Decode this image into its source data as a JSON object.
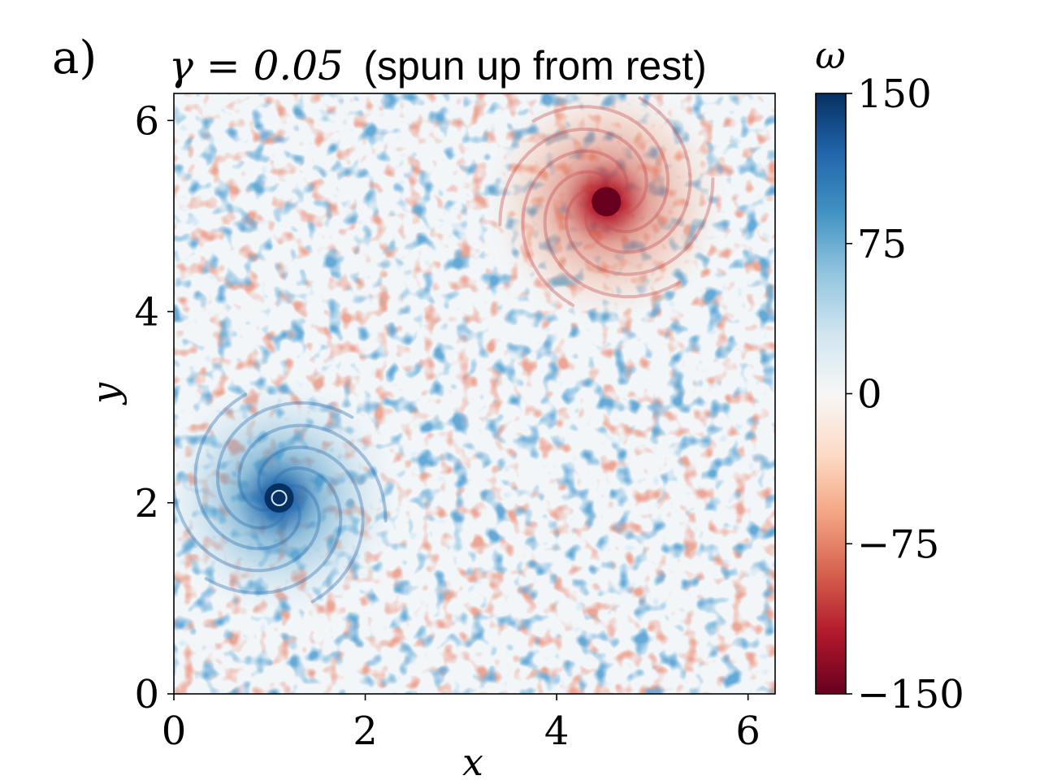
{
  "chart_data": {
    "type": "heatmap",
    "panel_label": "a)",
    "title_math": "γ = 0.05",
    "title_text": "(spun up from rest)",
    "xlabel": "x",
    "ylabel": "y",
    "xlim": [
      0,
      6.283
    ],
    "ylim": [
      0,
      6.283
    ],
    "x_ticks": [
      0,
      2,
      4,
      6
    ],
    "y_ticks": [
      0,
      2,
      4,
      6
    ],
    "x_tick_labels": [
      "0",
      "2",
      "4",
      "6"
    ],
    "y_tick_labels": [
      "0",
      "2",
      "4",
      "6"
    ],
    "colorbar": {
      "label": "ω",
      "range": [
        -150,
        150
      ],
      "ticks": [
        150,
        75,
        0,
        -75,
        -150
      ],
      "tick_labels": [
        "150",
        "75",
        "0",
        "−75",
        "−150"
      ],
      "colormap": "RdBu"
    },
    "features": [
      {
        "name": "cyclone-vortex",
        "x": 1.1,
        "y": 2.05,
        "omega": 150
      },
      {
        "name": "anticyclone-vortex",
        "x": 4.52,
        "y": 5.15,
        "omega": -150
      }
    ]
  }
}
